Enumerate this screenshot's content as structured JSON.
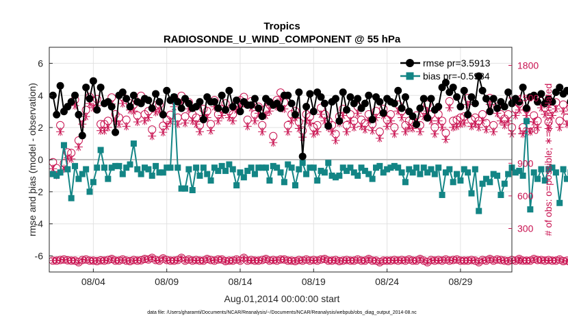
{
  "chart_data": {
    "type": "line",
    "title": "Tropics",
    "subtitle": "RADIOSONDE_U_WIND_COMPONENT @ 55 hPa",
    "xlabel": "Aug.01,2014 00:00:00 start",
    "ylabel": "rmse and bias (model - observation)",
    "y2label": "# of obs: o=possible; ∗=assimilated",
    "xlim": [
      0,
      31.5
    ],
    "ylim": [
      -7,
      7
    ],
    "y2lim": [
      -100,
      1966.7
    ],
    "x_ticks": [
      3,
      8,
      13,
      18,
      23,
      28
    ],
    "x_tick_labels": [
      "08/04",
      "08/09",
      "08/14",
      "08/19",
      "08/24",
      "08/29"
    ],
    "y_ticks": [
      -6,
      -4,
      -2,
      0,
      2,
      4,
      6
    ],
    "y_tick_labels": [
      "-6",
      "-4",
      "-2",
      "0",
      "2",
      "4",
      "6"
    ],
    "y2_ticks": [
      0,
      300,
      600,
      900,
      1200,
      1500,
      1800
    ],
    "y2_tick_labels": [
      "0",
      "300",
      "600",
      "900",
      "1200",
      "1500",
      "1800"
    ],
    "legend": [
      "rmse pr=3.5913",
      "bias pr=-0.5984"
    ],
    "legend_position": "top-right",
    "footnote": "data file: /Users/gharamti/Documents/NCAR/Reanalysis/~/Documents/NCAR/Reanalysis/webpub/obs_diag_output_2014-08.nc",
    "colors": {
      "rmse": "#000000",
      "bias": "#138585",
      "obs": "#c8104f",
      "zero": "#bdbdbd",
      "grid": "#e2e2e2"
    },
    "x_start": 0.25,
    "x_step": 0.25,
    "series": [
      {
        "name": "rmse",
        "values": [
          4.0,
          2.8,
          4.6,
          3.0,
          3.3,
          3.6,
          4.0,
          2.8,
          1.5,
          4.5,
          3.8,
          4.9,
          3.1,
          4.5,
          3.5,
          3.6,
          3.3,
          1.7,
          4.0,
          4.2,
          3.8,
          3.3,
          4.0,
          3.6,
          3.5,
          3.8,
          3.7,
          3.2,
          4.1,
          3.6,
          2.8,
          4.3,
          3.7,
          3.9,
          3.6,
          3.2,
          3.8,
          3.5,
          3.2,
          3.3,
          3.6,
          2.5,
          3.9,
          3.6,
          3.6,
          3.2,
          4.0,
          3.1,
          4.3,
          3.3,
          3.7,
          3.0,
          3.6,
          3.4,
          3.4,
          3.8,
          3.2,
          2.7,
          3.8,
          3.6,
          3.4,
          3.5,
          3.2,
          4.0,
          4.0,
          3.5,
          2.8,
          4.2,
          0.2,
          3.3,
          4.1,
          3.0,
          4.2,
          3.9,
          3.5,
          2.1,
          3.6,
          3.8,
          2.4,
          4.2,
          3.1,
          3.9,
          3.5,
          3.8,
          3.2,
          3.5,
          4.0,
          2.5,
          3.9,
          3.6,
          2.9,
          3.8,
          3.6,
          3.5,
          4.3,
          3.2,
          3.9,
          3.0,
          2.7,
          2.2,
          3.2,
          3.8,
          2.6,
          3.8,
          3.1,
          3.3,
          4.5,
          4.8,
          4.2,
          4.5,
          3.9,
          3.3,
          4.3,
          2.8,
          3.9,
          3.5,
          5.2,
          4.3,
          3.8,
          3.0,
          3.8,
          3.2,
          3.6,
          3.3,
          4.2,
          3.5,
          3.8,
          3.6,
          4.5,
          3.2,
          3.9,
          4.0,
          3.6,
          4.1,
          3.5,
          3.8,
          3.6,
          4.2,
          4.5,
          4.1,
          4.3,
          3.6,
          4.1,
          1.6
        ]
      },
      {
        "name": "bias",
        "values": [
          -0.9,
          -1.0,
          -0.8,
          0.9,
          -0.6,
          -2.4,
          -0.4,
          -1.2,
          -0.9,
          -0.6,
          -2.0,
          -1.4,
          -0.5,
          0.6,
          -0.5,
          -1.2,
          -0.5,
          -0.4,
          -0.4,
          -0.9,
          -0.5,
          -0.3,
          1.0,
          -0.6,
          -0.9,
          -0.5,
          -0.6,
          -1.0,
          -0.4,
          -0.8,
          -0.8,
          -0.5,
          -0.5,
          3.9,
          -0.5,
          -1.8,
          -1.8,
          -0.6,
          -1.9,
          -0.5,
          -1.0,
          -0.5,
          -0.9,
          -1.3,
          -0.5,
          -0.7,
          -0.4,
          -0.7,
          -0.3,
          -0.6,
          -1.6,
          -0.8,
          -1.1,
          -0.7,
          -0.5,
          -0.9,
          -0.5,
          -0.5,
          -0.5,
          -1.3,
          -0.4,
          -0.5,
          -0.8,
          -1.4,
          -0.3,
          -0.5,
          -1.6,
          -0.6,
          -0.2,
          -0.9,
          -0.5,
          -0.5,
          -1.3,
          -0.7,
          -0.8,
          -0.2,
          -1.0,
          -1.1,
          -1.0,
          -0.5,
          -0.7,
          -0.5,
          -0.8,
          -1.0,
          -0.5,
          -0.7,
          -0.9,
          -1.2,
          -0.5,
          -0.4,
          -0.8,
          -0.6,
          -0.5,
          -0.4,
          -0.5,
          -0.8,
          -1.4,
          -0.6,
          -0.8,
          -0.5,
          -0.9,
          -0.5,
          -0.8,
          -0.6,
          -0.9,
          -0.5,
          -2.2,
          -0.8,
          -0.6,
          -1.4,
          -0.9,
          -1.3,
          -0.6,
          -0.8,
          -2.1,
          -0.6,
          -3.2,
          -1.5,
          -1.2,
          -1.4,
          -0.9,
          -1.0,
          -2.2,
          -1.5,
          -0.9,
          -0.5,
          -0.8,
          -0.7,
          -1.0,
          2.4,
          -3.1,
          -0.8,
          -1.2,
          -0.6,
          -1.3,
          -0.6,
          -0.5,
          -0.8,
          -2.7,
          -0.6,
          -1.2,
          -0.8,
          -2.8,
          -1.0,
          -1.4,
          -0.6
        ]
      },
      {
        "name": "obs_possible",
        "values": [
          910,
          855,
          1250,
          900,
          1000,
          995,
          1485,
          1110,
          1320,
          1390,
          1510,
          1470,
          1490,
          1260,
          1260,
          1290,
          1505,
          1350,
          1320,
          1510,
          1300,
          1450,
          1440,
          1340,
          1520,
          1350,
          1380,
          1210,
          1430,
          1440,
          1245,
          1300,
          1345,
          1480,
          1320,
          1520,
          1330,
          1460,
          1350,
          1320,
          1250,
          1400,
          1380,
          1260,
          1480,
          1350,
          1400,
          1450,
          1380,
          1350,
          1450,
          1480,
          1510,
          1300,
          1470,
          1350,
          1420,
          1250,
          1400,
          1440,
          1150,
          1480,
          1550,
          1460,
          1250,
          1350,
          1380,
          1280,
          1200,
          1350,
          1330,
          1230,
          1250,
          1410,
          1350,
          1290,
          1250,
          1170,
          1330,
          1400,
          1250,
          1350,
          1290,
          1420,
          1300,
          1270,
          1350,
          1260,
          1380,
          1190,
          1400,
          1300,
          1350,
          1230,
          1440,
          1380,
          1250,
          1290,
          1280,
          1340,
          1250,
          1390,
          1440,
          1350,
          1230,
          1350,
          1290,
          1180,
          1470,
          1290,
          1300,
          1320,
          1330,
          1500,
          1300,
          1320,
          1290,
          1350,
          1270,
          1500,
          1250,
          1420,
          1350,
          1310,
          1350,
          1230,
          1400,
          1450,
          1230,
          1400,
          1250,
          1340,
          1290,
          1470,
          1410,
          1280,
          1400,
          1460,
          1290,
          1440,
          1320,
          1410,
          1210,
          1350
        ],
        "marker": "circle"
      },
      {
        "name": "obs_assimilated",
        "values": [
          850,
          790,
          1190,
          850,
          950,
          940,
          1430,
          1050,
          1260,
          1330,
          1450,
          1410,
          1430,
          1200,
          1200,
          1230,
          1445,
          1290,
          1260,
          1450,
          1240,
          1390,
          1380,
          1280,
          1460,
          1290,
          1320,
          1150,
          1370,
          1380,
          1185,
          1240,
          1285,
          1420,
          1260,
          1460,
          1270,
          1400,
          1290,
          1260,
          1190,
          1340,
          1320,
          1200,
          1420,
          1290,
          1340,
          1390,
          1320,
          1290,
          1390,
          1420,
          1450,
          1240,
          1410,
          1290,
          1360,
          1190,
          1340,
          1380,
          1090,
          1420,
          1490,
          1400,
          1190,
          1290,
          1320,
          1220,
          1140,
          1290,
          1270,
          1170,
          1190,
          1350,
          1290,
          1230,
          1190,
          1110,
          1270,
          1340,
          1190,
          1290,
          1230,
          1360,
          1240,
          1210,
          1290,
          1200,
          1320,
          1130,
          1340,
          1240,
          1290,
          1170,
          1380,
          1320,
          1190,
          1230,
          1220,
          1280,
          1190,
          1330,
          1380,
          1290,
          1170,
          1290,
          1230,
          1120,
          1410,
          1230,
          1240,
          1260,
          1270,
          1440,
          1240,
          1260,
          1230,
          1290,
          1210,
          1440,
          1190,
          1360,
          1290,
          1250,
          1290,
          1170,
          1340,
          1390,
          1170,
          1340,
          1190,
          1280,
          1230,
          1410,
          1350,
          1220,
          1340,
          1400,
          1230,
          1380,
          1260,
          1350,
          1150,
          1290
        ],
        "marker": "asterisk"
      },
      {
        "name": "obs_low_possible",
        "values": [
          5,
          5,
          10,
          15,
          8,
          5,
          5,
          -10,
          10,
          15,
          5,
          5,
          0,
          8,
          5,
          10,
          20,
          5,
          5,
          15,
          5,
          0,
          10,
          5,
          8,
          20,
          15,
          30,
          10,
          5,
          25,
          10,
          5,
          5,
          10,
          30,
          5,
          15,
          5,
          10,
          5,
          5,
          20,
          10,
          5,
          15,
          15,
          0,
          5,
          5,
          15,
          5,
          30,
          5,
          10,
          5,
          5,
          10,
          20,
          5,
          10,
          5,
          15,
          15,
          5,
          5,
          0,
          10,
          5,
          15,
          5,
          10,
          5,
          15,
          20,
          5,
          5,
          10,
          0,
          5,
          10,
          5,
          5,
          15,
          5,
          5,
          20,
          5,
          5,
          -10,
          5,
          5,
          5,
          10,
          5,
          10,
          5,
          15,
          5,
          5,
          20,
          5,
          -10,
          10,
          5,
          10,
          5,
          15,
          5,
          10,
          15,
          5,
          5,
          5,
          10,
          5,
          -10,
          10,
          5,
          20,
          5,
          15,
          10,
          5,
          0,
          10,
          5,
          20,
          5,
          5,
          5,
          20,
          10,
          10,
          5,
          10,
          5,
          5,
          15,
          0,
          5,
          -10,
          0,
          5,
          -10
        ],
        "marker": "circle-asterisk"
      }
    ]
  }
}
